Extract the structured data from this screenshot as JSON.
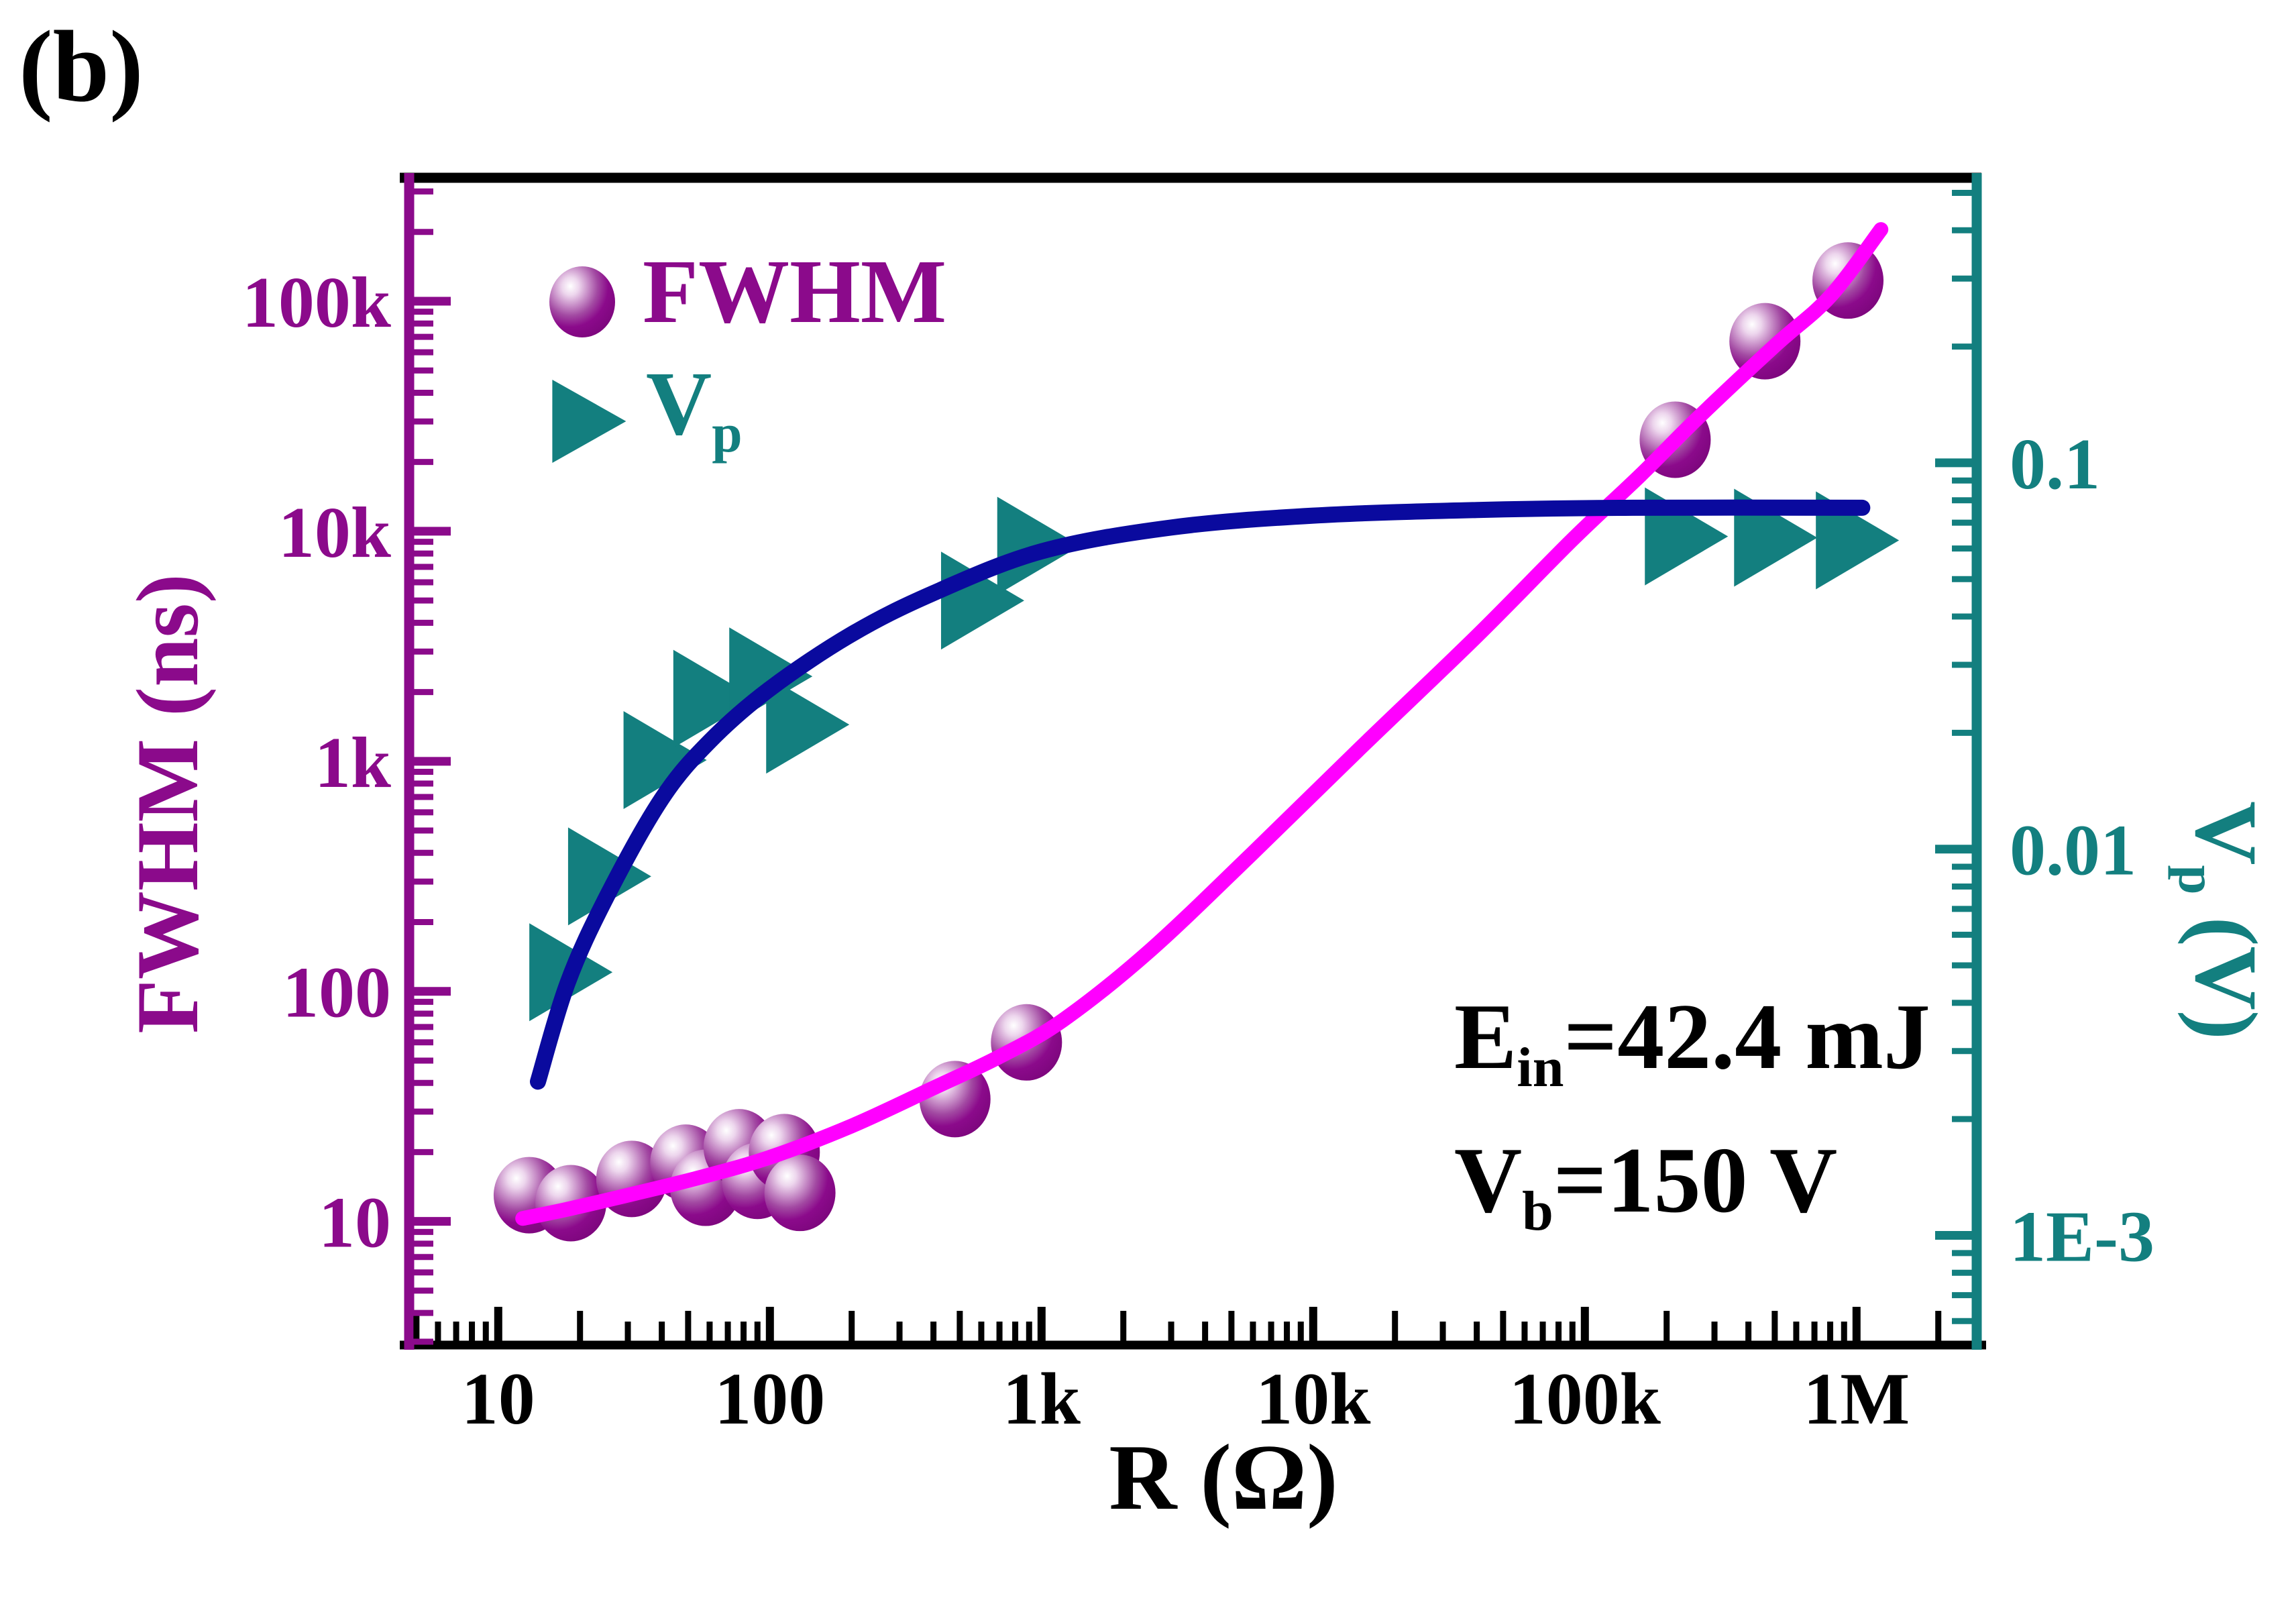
{
  "page": {
    "panel_label": "(b)"
  },
  "legend": {
    "position": "top-left-inside",
    "items": [
      {
        "label": "FWHM",
        "marker": "sphere",
        "color": "#8B0A8B"
      },
      {
        "label": "V",
        "sub": "p",
        "marker": "triangle-right",
        "color": "#137F7F"
      }
    ]
  },
  "axis_titles": {
    "left": "FWHM (ns)",
    "bottom": "R (Ω)",
    "right_base": "V",
    "right_sub": "p",
    "right_unit": " (V)"
  },
  "annotations": [
    {
      "base": "E",
      "sub": "in",
      "rest": "=42.4 mJ"
    },
    {
      "base": "V",
      "sub": "b",
      "rest": "=150 V"
    }
  ],
  "chart_data": {
    "type": "scatter",
    "title": "",
    "background": "#FFFFFF",
    "grid": false,
    "x_axis": {
      "label": "R (Ω)",
      "scale": "log",
      "min": 4.7,
      "max": 2770000,
      "color": "#000000",
      "ticks": [
        {
          "v": 10,
          "label": "10"
        },
        {
          "v": 100,
          "label": "100"
        },
        {
          "v": 1000,
          "label": "1k"
        },
        {
          "v": 10000,
          "label": "10k"
        },
        {
          "v": 100000,
          "label": "100k"
        },
        {
          "v": 1000000,
          "label": "1M"
        }
      ]
    },
    "y_left": {
      "label": "FWHM (ns)",
      "scale": "log",
      "min": 2.9,
      "max": 344000,
      "color": "#8B0A8B",
      "ticks": [
        {
          "v": 100000,
          "label": "100k"
        },
        {
          "v": 10000,
          "label": "10k"
        },
        {
          "v": 1000,
          "label": "1k"
        },
        {
          "v": 100,
          "label": "100"
        },
        {
          "v": 10,
          "label": "10"
        }
      ]
    },
    "y_right": {
      "label": "Vp (V)",
      "scale": "log",
      "min": 0.00052,
      "max": 0.547,
      "color": "#137F7F",
      "ticks": [
        {
          "v": 0.1,
          "label": "0.1"
        },
        {
          "v": 0.01,
          "label": "0.01"
        },
        {
          "v": 0.001,
          "label": "1E-3"
        }
      ]
    },
    "series": [
      {
        "name": "FWHM",
        "axis": "left",
        "marker": "sphere",
        "color": "#8B0A8B",
        "points": [
          [
            13,
            13
          ],
          [
            18.5,
            12
          ],
          [
            31,
            15.3
          ],
          [
            49,
            18
          ],
          [
            58,
            14
          ],
          [
            77,
            21
          ],
          [
            90,
            15
          ],
          [
            113,
            20
          ],
          [
            129,
            13.3
          ],
          [
            480,
            34
          ],
          [
            880,
            60
          ],
          [
            215000,
            25000
          ],
          [
            460000,
            67000
          ],
          [
            930000,
            123000
          ]
        ]
      },
      {
        "name": "Vp",
        "axis": "right",
        "marker": "triangle-right",
        "color": "#137F7F",
        "points": [
          [
            18,
            0.0048
          ],
          [
            25,
            0.0085
          ],
          [
            40,
            0.017
          ],
          [
            61,
            0.0245
          ],
          [
            98,
            0.028
          ],
          [
            134,
            0.021
          ],
          [
            590,
            0.044
          ],
          [
            950,
            0.061
          ],
          [
            230000,
            0.0645
          ],
          [
            490000,
            0.064
          ],
          [
            980000,
            0.063
          ]
        ]
      }
    ],
    "fit_lines": [
      {
        "name": "FWHM fit",
        "axis": "left",
        "color": "#FF00FF",
        "points": [
          [
            12.3,
            10.3
          ],
          [
            18,
            11.3
          ],
          [
            30,
            13
          ],
          [
            55,
            15.5
          ],
          [
            100,
            19
          ],
          [
            200,
            26
          ],
          [
            400,
            38
          ],
          [
            700,
            52
          ],
          [
            1200,
            75
          ],
          [
            2500,
            150
          ],
          [
            6000,
            400
          ],
          [
            15000,
            1150
          ],
          [
            40000,
            3500
          ],
          [
            90000,
            9200
          ],
          [
            160000,
            17500
          ],
          [
            260000,
            31000
          ],
          [
            500000,
            64000
          ],
          [
            800000,
            105000
          ],
          [
            1230000,
            205000
          ]
        ]
      },
      {
        "name": "Vp fit",
        "axis": "right",
        "color": "#0A0A9E",
        "points": [
          [
            14,
            0.0025
          ],
          [
            18,
            0.0045
          ],
          [
            25,
            0.0075
          ],
          [
            40,
            0.0135
          ],
          [
            60,
            0.019
          ],
          [
            100,
            0.026
          ],
          [
            200,
            0.036
          ],
          [
            400,
            0.046
          ],
          [
            1000,
            0.059
          ],
          [
            3000,
            0.068
          ],
          [
            10000,
            0.073
          ],
          [
            40000,
            0.0755
          ],
          [
            150000,
            0.0765
          ],
          [
            1050000,
            0.0765
          ]
        ]
      }
    ]
  }
}
